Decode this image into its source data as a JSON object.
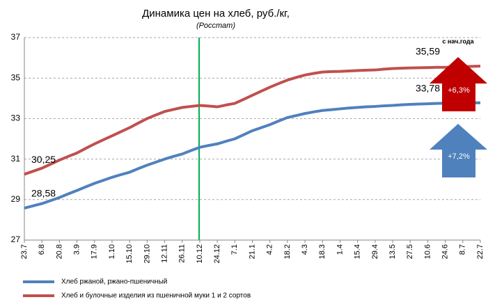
{
  "chart_data": {
    "type": "line",
    "title": "Динамика цен на хлеб, руб./кг,",
    "subtitle": "(Росстат)",
    "categories": [
      "23.7",
      null,
      "6.8",
      null,
      "20.8",
      null,
      "3.9",
      null,
      "17.9",
      null,
      "1.10",
      null,
      "15.10",
      null,
      "29.10",
      null,
      "12.11",
      null,
      "26.11",
      null,
      "10.12",
      null,
      "24.12",
      null,
      "7.1",
      null,
      "21.1",
      null,
      "4.2",
      null,
      "18.2",
      null,
      "4.3",
      null,
      "18.3",
      null,
      "1.4",
      null,
      "15.4",
      null,
      "29.4",
      null,
      "13.5",
      null,
      "27.5",
      null,
      "10.6",
      null,
      "24.6",
      null,
      "8.7",
      null,
      "22.7"
    ],
    "series": [
      {
        "name": "Хлеб ржаной, ржано-пшеничный",
        "color": "#4f81bd",
        "values": [
          28.58,
          28.69,
          28.8,
          28.95,
          29.1,
          29.28,
          29.45,
          29.63,
          29.8,
          29.95,
          30.1,
          30.23,
          30.35,
          30.53,
          30.7,
          30.85,
          31.0,
          31.13,
          31.25,
          31.42,
          31.58,
          31.67,
          31.75,
          31.88,
          32.0,
          32.2,
          32.4,
          32.55,
          32.7,
          32.88,
          33.05,
          33.15,
          33.25,
          33.33,
          33.4,
          33.44,
          33.48,
          33.52,
          33.55,
          33.58,
          33.6,
          33.63,
          33.65,
          33.68,
          33.7,
          33.72,
          33.73,
          33.75,
          33.76,
          33.77,
          33.78,
          33.78,
          33.78
        ],
        "value_labels": [
          "28,58",
          null,
          null,
          null,
          null,
          null,
          null,
          null,
          null,
          null,
          null,
          null,
          null,
          null,
          null,
          null,
          null,
          null,
          null,
          null,
          null,
          null,
          null,
          null,
          null,
          null,
          null,
          null,
          null,
          null,
          null,
          null,
          null,
          null,
          null,
          null,
          null,
          null,
          null,
          null,
          null,
          null,
          null,
          null,
          null,
          null,
          null,
          null,
          null,
          null,
          null,
          null,
          "33,78"
        ]
      },
      {
        "name": "Хлеб и булочные изделия из пшеничной муки 1 и 2 сортов",
        "color": "#c0504d",
        "values": [
          30.25,
          30.4,
          30.55,
          30.75,
          30.95,
          31.13,
          31.3,
          31.53,
          31.75,
          31.95,
          32.15,
          32.35,
          32.55,
          32.78,
          33.0,
          33.18,
          33.35,
          33.45,
          33.55,
          33.6,
          33.65,
          33.62,
          33.58,
          33.67,
          33.75,
          33.95,
          34.15,
          34.35,
          34.55,
          34.73,
          34.9,
          35.03,
          35.15,
          35.23,
          35.3,
          35.32,
          35.33,
          35.35,
          35.37,
          35.39,
          35.4,
          35.44,
          35.47,
          35.49,
          35.5,
          35.51,
          35.52,
          35.53,
          35.53,
          35.55,
          35.56,
          35.58,
          35.59
        ],
        "value_labels": [
          "30,25",
          null,
          null,
          null,
          null,
          null,
          null,
          null,
          null,
          null,
          null,
          null,
          null,
          null,
          null,
          null,
          null,
          null,
          null,
          null,
          null,
          null,
          null,
          null,
          null,
          null,
          null,
          null,
          null,
          null,
          null,
          null,
          null,
          null,
          null,
          null,
          null,
          null,
          null,
          null,
          null,
          null,
          null,
          null,
          null,
          null,
          null,
          null,
          null,
          null,
          null,
          null,
          "35,59"
        ]
      }
    ],
    "ylim": [
      27,
      37
    ],
    "yticks": [
      27,
      29,
      31,
      33,
      35,
      37
    ],
    "grid": true,
    "annotations": {
      "header": "с нач.года",
      "items": [
        {
          "text": "+6,3%",
          "color": "#c00000"
        },
        {
          "text": "+7,2%",
          "color": "#4f81bd"
        }
      ]
    }
  }
}
